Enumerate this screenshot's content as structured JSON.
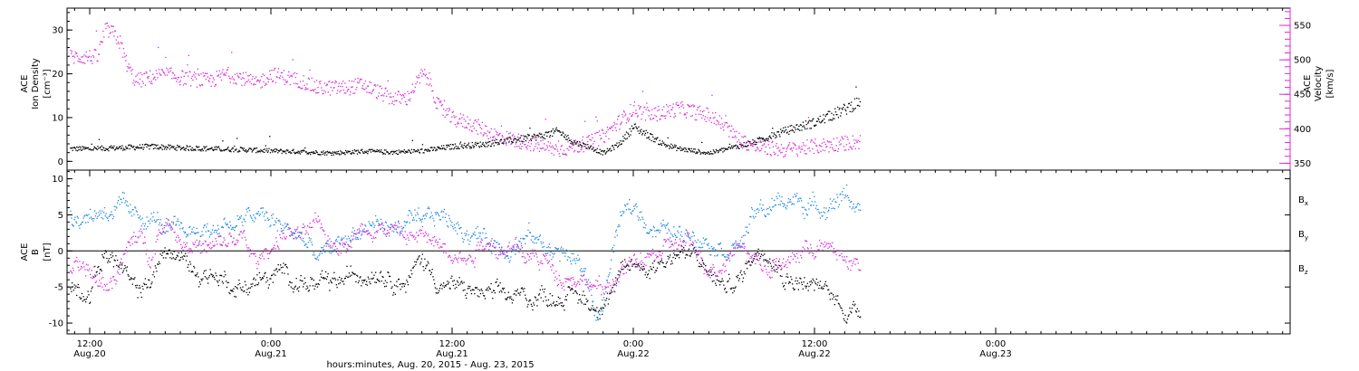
{
  "chart_data": [
    {
      "type": "scatter",
      "panel": "top",
      "ylabel_left": [
        "ACE",
        "Ion Density",
        "[cm⁻³]"
      ],
      "ylabel_right": [
        "ACE",
        "Velocity",
        "[km/s]"
      ],
      "ylim_left": [
        -2,
        35
      ],
      "ylim_right": [
        340,
        575
      ],
      "yticks_left": [
        "0",
        "10",
        "20",
        "30"
      ],
      "yticks_left_values": [
        0,
        10,
        20,
        30
      ],
      "yticks_right": [
        "350",
        "400",
        "450",
        "500",
        "550"
      ],
      "yticks_right_values": [
        350,
        400,
        450,
        500,
        550
      ],
      "series": [
        {
          "name": "Ion Density",
          "axis": "left",
          "color": "#000000",
          "x": [
            0,
            2,
            4,
            6,
            8,
            10,
            12,
            14,
            16,
            18,
            20,
            22,
            24,
            26,
            27,
            28,
            29,
            30,
            31,
            32,
            33,
            34,
            35,
            36,
            37,
            38,
            39,
            40,
            41,
            42,
            44,
            46,
            48,
            50,
            51
          ],
          "values": [
            3,
            3.2,
            3.5,
            3.2,
            3,
            2.8,
            2.5,
            2.3,
            2,
            2.4,
            2.2,
            2.5,
            3.5,
            4,
            4.5,
            5,
            5.5,
            6,
            7,
            4.5,
            3.5,
            2,
            4,
            8,
            6,
            4,
            3,
            2.5,
            2,
            2.8,
            4.5,
            7,
            9,
            12,
            14
          ]
        },
        {
          "name": "Velocity",
          "axis": "right",
          "color": "#d82bd8",
          "x": [
            0,
            0.5,
            1,
            1.5,
            2,
            2.5,
            3,
            4,
            5,
            6,
            8,
            9,
            10,
            11,
            12,
            13,
            14,
            15,
            16,
            17,
            18,
            19,
            20,
            21,
            22,
            22.5,
            23,
            24,
            25,
            26,
            27,
            28,
            29,
            30,
            31,
            32,
            33,
            34,
            35,
            36,
            37,
            38,
            39,
            40,
            41,
            42,
            43,
            44,
            46,
            48,
            50,
            51
          ],
          "values": [
            505,
            505,
            545,
            540,
            525,
            490,
            470,
            475,
            480,
            475,
            470,
            480,
            475,
            465,
            480,
            475,
            470,
            460,
            460,
            460,
            465,
            455,
            445,
            445,
            480,
            470,
            435,
            415,
            410,
            400,
            390,
            385,
            380,
            375,
            370,
            375,
            380,
            390,
            410,
            430,
            420,
            425,
            430,
            425,
            420,
            405,
            385,
            375,
            370,
            375,
            380,
            382
          ]
        }
      ]
    },
    {
      "type": "line",
      "panel": "bottom",
      "ylabel_left": [
        "ACE",
        "B",
        "[nT]"
      ],
      "ylim": [
        -11.5,
        11.2
      ],
      "yticks": [
        "10",
        "5",
        "0",
        "-5",
        "-10"
      ],
      "yticks_values": [
        10,
        5,
        0,
        -5,
        -10
      ],
      "zero_line": true,
      "series": [
        {
          "name": "Bx",
          "legend_main": "B",
          "legend_sub": "x",
          "color": "#000000",
          "x": [
            0,
            1,
            2,
            3,
            4,
            5,
            6,
            7,
            8,
            9,
            10,
            11,
            12,
            13,
            14,
            15,
            16,
            17,
            18,
            19,
            20,
            21,
            22,
            23,
            24,
            25,
            26,
            27,
            28,
            29,
            30,
            31,
            32,
            33,
            33.5,
            34,
            35,
            36,
            37,
            38,
            39,
            40,
            41,
            42,
            43,
            44,
            45,
            46,
            47,
            48,
            49,
            50,
            51
          ],
          "values": [
            -5,
            0,
            -2,
            -6,
            -4,
            0,
            -1,
            -3,
            -3,
            -4,
            -5,
            -4,
            -4,
            -3,
            -4,
            -5,
            -5,
            -4,
            -3,
            -2,
            -3,
            -4,
            -1,
            -4,
            -5,
            -5.5,
            -6,
            -6.5,
            -6.5,
            -6.5,
            -6,
            -6,
            -6,
            -7,
            -8,
            -6,
            -4,
            -2,
            -2,
            -1,
            0,
            -1,
            -3,
            -5,
            -4,
            0,
            1,
            -3,
            -4,
            -5,
            -6,
            -8,
            -8
          ]
        },
        {
          "name": "By",
          "legend_main": "B",
          "legend_sub": "y",
          "color": "#1e88e5",
          "x": [
            0,
            1,
            2,
            3,
            4,
            5,
            6,
            7,
            8,
            9,
            10,
            11,
            12,
            13,
            14,
            15,
            16,
            17,
            18,
            19,
            20,
            21,
            22,
            23,
            24,
            25,
            26,
            27,
            28,
            29,
            30,
            31,
            32,
            33,
            33.5,
            34,
            35,
            36,
            37,
            38,
            39,
            40,
            41,
            42,
            43,
            44,
            45,
            46,
            47,
            48,
            49,
            50,
            51
          ],
          "values": [
            5,
            6,
            6,
            4,
            5,
            3,
            2,
            3,
            3,
            4,
            4,
            5,
            4,
            3,
            2,
            -1,
            0,
            2,
            3,
            4,
            3,
            4,
            3,
            5,
            4,
            3,
            2,
            1,
            1,
            2,
            1,
            0,
            -1,
            -4,
            -9,
            -7,
            4,
            6,
            4,
            3,
            2,
            3,
            2,
            1,
            1,
            5,
            6,
            7,
            7,
            6,
            7,
            8,
            6
          ]
        },
        {
          "name": "Bz",
          "legend_main": "B",
          "legend_sub": "z",
          "color": "#d82bd8",
          "x": [
            0,
            1,
            2,
            3,
            4,
            5,
            6,
            7,
            8,
            9,
            10,
            11,
            12,
            13,
            14,
            15,
            16,
            17,
            18,
            19,
            20,
            21,
            22,
            23,
            24,
            25,
            26,
            27,
            28,
            29,
            30,
            31,
            32,
            33,
            33.5,
            34,
            35,
            36,
            37,
            38,
            39,
            40,
            41,
            42,
            43,
            44,
            45,
            46,
            47,
            48,
            49,
            50,
            51
          ],
          "values": [
            -3,
            -5,
            -2,
            2,
            0,
            5,
            2,
            1,
            0,
            1,
            2,
            -2,
            1,
            3,
            2,
            3,
            1,
            2,
            3,
            4,
            3,
            2,
            2,
            1,
            1,
            -1,
            2,
            1,
            0,
            -1,
            -1,
            -3,
            -3,
            -4,
            -5,
            -6,
            -3,
            -2,
            -1,
            0,
            1,
            0,
            -2,
            -1,
            2,
            -1,
            -2,
            -2,
            0,
            1,
            0,
            -1,
            -2
          ]
        }
      ]
    }
  ],
  "x_axis": {
    "range_hours": [
      -1.5,
      79.5
    ],
    "ticks": [
      {
        "hours": 0,
        "time": "12:00",
        "date": "Aug.20"
      },
      {
        "hours": 12,
        "time": "0:00",
        "date": "Aug.21"
      },
      {
        "hours": 24,
        "time": "12:00",
        "date": "Aug.21"
      },
      {
        "hours": 36,
        "time": "0:00",
        "date": "Aug.22"
      },
      {
        "hours": 48,
        "time": "12:00",
        "date": "Aug.22"
      },
      {
        "hours": 60,
        "time": "0:00",
        "date": "Aug.23"
      }
    ],
    "title": "hours:minutes, Aug. 20, 2015 - Aug. 23, 2015"
  }
}
